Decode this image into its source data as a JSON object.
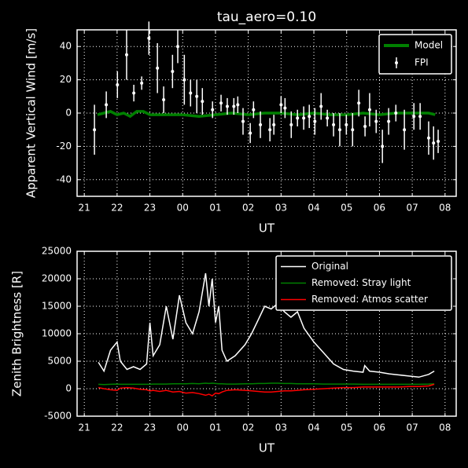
{
  "chart_data": [
    {
      "type": "line",
      "title": "tau_aero=0.10",
      "xlabel": "UT",
      "ylabel": "Apparent Vertical Wind [m/s]",
      "xlim": [
        20.78,
        32.34
      ],
      "ylim": [
        -50,
        50
      ],
      "xticks": [
        21,
        22,
        23,
        {
          "value": 24,
          "label": "00"
        },
        {
          "value": 25,
          "label": "01"
        },
        {
          "value": 26,
          "label": "02"
        },
        {
          "value": 27,
          "label": "03"
        },
        {
          "value": 28,
          "label": "04"
        },
        {
          "value": 29,
          "label": "05"
        },
        {
          "value": 30,
          "label": "06"
        },
        {
          "value": 31,
          "label": "07"
        },
        {
          "value": 32,
          "label": "08"
        }
      ],
      "yticks": [
        -40,
        -20,
        0,
        20,
        40
      ],
      "grid": true,
      "legend": "upper right",
      "series": [
        {
          "name": "Model",
          "type": "line",
          "color": "#008000",
          "x": [
            21.4,
            21.6,
            21.8,
            22.0,
            22.2,
            22.4,
            22.6,
            22.8,
            23.0,
            23.2,
            23.5,
            24.0,
            24.5,
            25.0,
            25.5,
            26.0,
            26.5,
            27.0,
            27.5,
            28.0,
            28.5,
            29.0,
            29.5,
            30.0,
            30.5,
            31.0,
            31.5,
            31.7
          ],
          "values": [
            -1,
            0,
            1,
            -1,
            0,
            -2,
            1,
            1,
            -1,
            -1,
            -1,
            -1,
            -2,
            -1,
            0,
            -1,
            0,
            0,
            -1,
            0,
            -1,
            -1,
            0,
            -1,
            0,
            0,
            0,
            -1
          ]
        },
        {
          "name": "FPI",
          "type": "errorbar",
          "color": "#ffffff",
          "x": [
            21.31,
            21.67,
            22.01,
            22.29,
            22.51,
            22.75,
            22.97,
            23.23,
            23.42,
            23.69,
            23.85,
            24.05,
            24.24,
            24.43,
            24.6,
            24.91,
            25.17,
            25.36,
            25.56,
            25.68,
            25.84,
            26.06,
            26.16,
            26.37,
            26.66,
            26.78,
            27.0,
            27.12,
            27.31,
            27.5,
            27.69,
            27.86,
            28.03,
            28.22,
            28.41,
            28.6,
            28.79,
            28.99,
            29.18,
            29.37,
            29.56,
            29.7,
            29.9,
            30.09,
            30.28,
            30.5,
            30.76,
            31.05,
            31.24,
            31.5,
            31.65,
            31.79
          ],
          "values": [
            -10,
            5,
            17,
            35,
            12,
            18,
            45,
            27,
            8,
            25,
            40,
            20,
            12,
            10,
            7,
            2,
            6,
            4,
            4,
            5,
            -5,
            -12,
            2,
            -7,
            -10,
            -7,
            5,
            3,
            -7,
            -3,
            -3,
            -2,
            -5,
            4,
            -3,
            -7,
            -10,
            -7,
            -10,
            6,
            -8,
            2,
            -5,
            -20,
            -5,
            0,
            -10,
            -2,
            -2,
            -15,
            -18,
            -17
          ],
          "errors": [
            15,
            8,
            8,
            15,
            5,
            4,
            10,
            15,
            8,
            10,
            10,
            15,
            8,
            10,
            8,
            5,
            5,
            5,
            5,
            5,
            8,
            6,
            5,
            8,
            7,
            6,
            5,
            6,
            8,
            5,
            7,
            7,
            8,
            8,
            5,
            7,
            10,
            6,
            10,
            8,
            6,
            10,
            7,
            10,
            8,
            5,
            12,
            8,
            8,
            10,
            10,
            7
          ]
        }
      ]
    },
    {
      "type": "line",
      "xlabel": "UT",
      "ylabel": "Zenith Brightness [R]",
      "xlim": [
        20.78,
        32.34
      ],
      "ylim": [
        -5000,
        25000
      ],
      "xticks": [
        21,
        22,
        23,
        {
          "value": 24,
          "label": "00"
        },
        {
          "value": 25,
          "label": "01"
        },
        {
          "value": 26,
          "label": "02"
        },
        {
          "value": 27,
          "label": "03"
        },
        {
          "value": 28,
          "label": "04"
        },
        {
          "value": 29,
          "label": "05"
        },
        {
          "value": 30,
          "label": "06"
        },
        {
          "value": 31,
          "label": "07"
        },
        {
          "value": 32,
          "label": "08"
        }
      ],
      "yticks": [
        -5000,
        0,
        5000,
        10000,
        15000,
        20000,
        25000
      ],
      "grid": true,
      "legend": "upper right",
      "x": [
        21.43,
        21.6,
        21.8,
        22.0,
        22.1,
        22.3,
        22.5,
        22.7,
        22.9,
        23.0,
        23.1,
        23.3,
        23.5,
        23.7,
        23.9,
        24.1,
        24.3,
        24.5,
        24.7,
        24.8,
        24.9,
        25.0,
        25.1,
        25.2,
        25.35,
        25.6,
        25.9,
        26.1,
        26.3,
        26.5,
        26.7,
        26.9,
        27.1,
        27.3,
        27.5,
        27.7,
        28.0,
        28.3,
        28.6,
        28.9,
        29.2,
        29.5,
        29.55,
        29.7,
        30.0,
        30.3,
        30.6,
        30.9,
        31.2,
        31.5,
        31.67
      ],
      "series": [
        {
          "name": "Original",
          "type": "line",
          "color": "#ffffff",
          "values": [
            4800,
            3200,
            7000,
            8500,
            5000,
            3500,
            4000,
            3500,
            4500,
            12000,
            6000,
            8000,
            15000,
            9000,
            17000,
            12000,
            10000,
            14000,
            21000,
            15000,
            20000,
            12000,
            15000,
            7000,
            5000,
            6000,
            8000,
            10000,
            12500,
            15000,
            14500,
            15500,
            14000,
            13000,
            14000,
            11000,
            8500,
            6500,
            4500,
            3500,
            3200,
            3000,
            4200,
            3200,
            3000,
            2700,
            2500,
            2300,
            2100,
            2600,
            3200
          ]
        },
        {
          "name": "Removed: Stray light",
          "type": "line",
          "color": "#008000",
          "values": [
            800,
            750,
            800,
            850,
            800,
            800,
            800,
            800,
            800,
            800,
            850,
            850,
            850,
            900,
            900,
            900,
            950,
            900,
            1000,
            950,
            1000,
            950,
            900,
            900,
            850,
            850,
            900,
            900,
            950,
            950,
            1000,
            1000,
            950,
            950,
            900,
            900,
            900,
            850,
            850,
            850,
            850,
            800,
            800,
            800,
            800,
            800,
            800,
            800,
            800,
            850,
            900
          ]
        },
        {
          "name": "Removed: Atmos scatter",
          "type": "line",
          "color": "#ff0000",
          "values": [
            200,
            0,
            -200,
            -300,
            100,
            200,
            100,
            -100,
            -200,
            -400,
            -300,
            -500,
            -300,
            -600,
            -500,
            -800,
            -700,
            -900,
            -1200,
            -1000,
            -1300,
            -800,
            -900,
            -600,
            -300,
            -200,
            -300,
            -400,
            -500,
            -600,
            -600,
            -500,
            -400,
            -400,
            -300,
            -200,
            -100,
            0,
            100,
            200,
            200,
            300,
            300,
            300,
            300,
            300,
            300,
            400,
            400,
            500,
            800
          ]
        }
      ]
    }
  ]
}
